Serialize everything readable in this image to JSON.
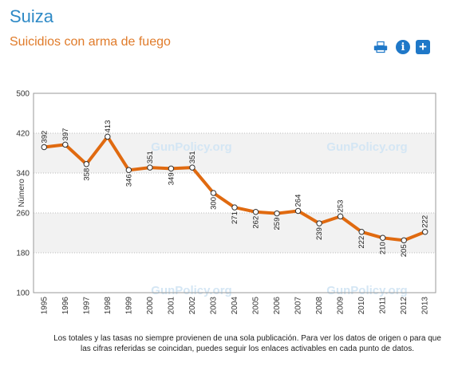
{
  "header": {
    "country": "Suiza",
    "subtitle": "Suicidios con arma de fuego"
  },
  "toolbar": {
    "print_icon": "printer-icon",
    "info_icon": "info-icon",
    "info_glyph": "i",
    "add_icon": "plus-icon",
    "add_glyph": "+"
  },
  "colors": {
    "title": "#2f8ac6",
    "subtitle": "#e07b2a",
    "line": "#e06a10",
    "band": "#f2f2f2",
    "watermark": "#d4e6f4"
  },
  "watermark": "GunPolicy.org",
  "chart_data": {
    "type": "line",
    "ylabel": "Número",
    "ylim": [
      100,
      500
    ],
    "yticks": [
      100,
      180,
      260,
      340,
      420,
      500
    ],
    "grid": true,
    "x": [
      "1995",
      "1996",
      "1997",
      "1998",
      "1999",
      "2000",
      "2001",
      "2002",
      "2003",
      "2004",
      "2005",
      "2006",
      "2007",
      "2008",
      "2009",
      "2010",
      "2011",
      "2012",
      "2013"
    ],
    "series": [
      {
        "values": [
          392,
          397,
          358,
          413,
          346,
          351,
          349,
          351,
          300,
          271,
          262,
          259,
          264,
          239,
          253,
          222,
          210,
          205,
          222
        ]
      }
    ]
  },
  "footnote": "Los totales y las tasas no siempre provienen de una sola publicación. Para ver los datos de origen o para que las cifras referidas se coincidan, puedes seguir los enlaces activables en cada punto de datos."
}
